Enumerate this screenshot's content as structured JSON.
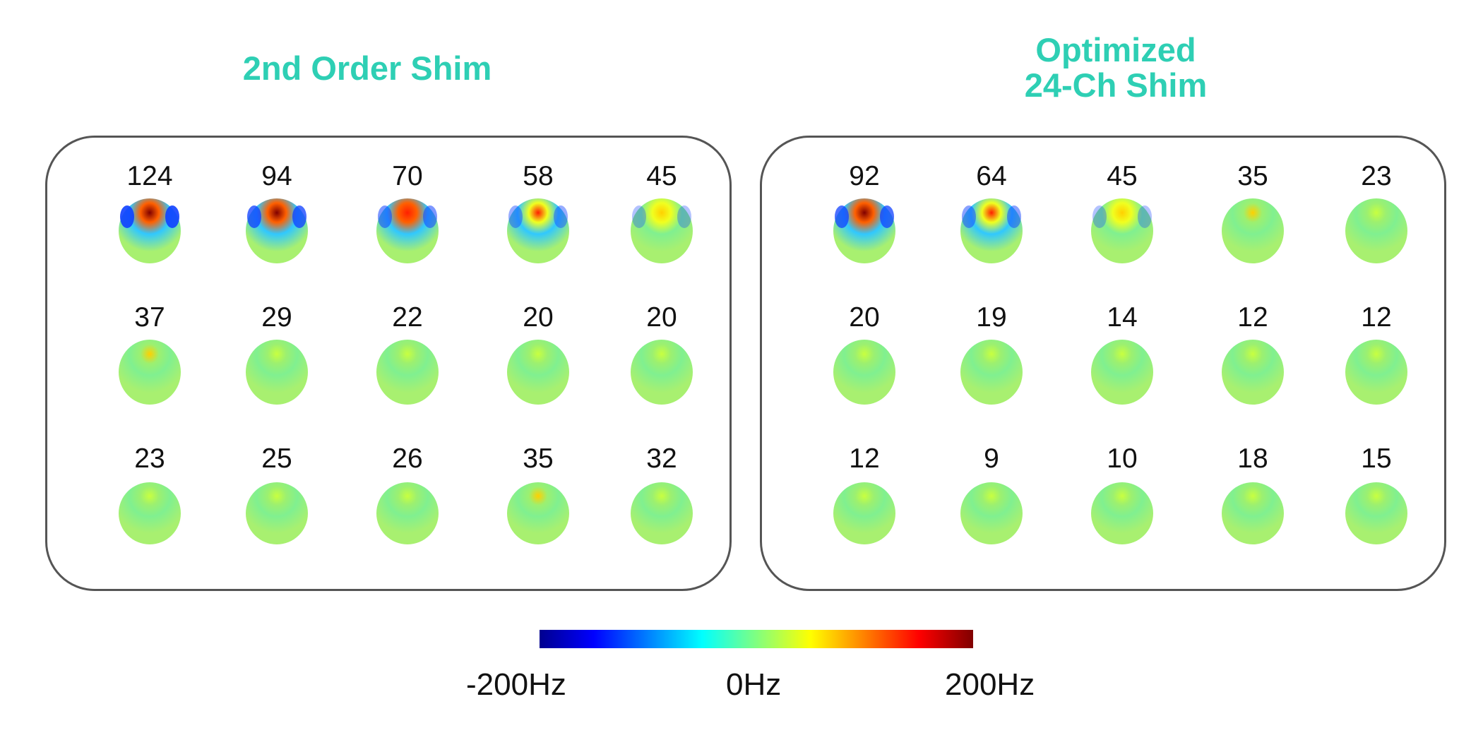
{
  "titles": {
    "left": "2nd Order Shim",
    "right_line1": "Optimized",
    "right_line2": "24-Ch Shim"
  },
  "panels": {
    "left": {
      "rows": [
        [
          "124",
          "94",
          "70",
          "58",
          "45"
        ],
        [
          "37",
          "29",
          "22",
          "20",
          "20"
        ],
        [
          "23",
          "25",
          "26",
          "35",
          "32"
        ]
      ]
    },
    "right": {
      "rows": [
        [
          "92",
          "64",
          "45",
          "35",
          "23"
        ],
        [
          "20",
          "19",
          "14",
          "12",
          "12"
        ],
        [
          "12",
          "9",
          "10",
          "18",
          "15"
        ]
      ]
    }
  },
  "colorbar": {
    "min_label": "-200Hz",
    "mid_label": "0Hz",
    "max_label": "200Hz",
    "colors": [
      "#00008f",
      "#0000ff",
      "#0080ff",
      "#00ffff",
      "#80ff80",
      "#ffff00",
      "#ff8000",
      "#ff0000",
      "#800000"
    ]
  }
}
